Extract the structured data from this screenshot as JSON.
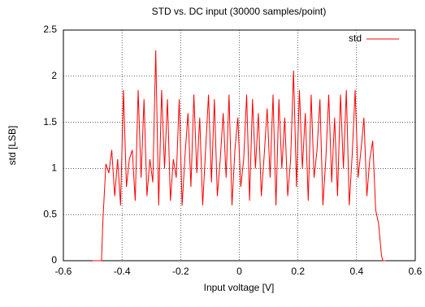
{
  "chart_data": {
    "type": "line",
    "title": "STD vs. DC input (30000 samples/point)",
    "x_label": "Input voltage [V]",
    "y_label": "std [LSB]",
    "x": [
      -0.5,
      -0.48,
      -0.47,
      -0.465,
      -0.455,
      -0.445,
      -0.435,
      -0.425,
      -0.415,
      -0.405,
      -0.395,
      -0.385,
      -0.375,
      -0.365,
      -0.355,
      -0.345,
      -0.335,
      -0.325,
      -0.315,
      -0.305,
      -0.295,
      -0.285,
      -0.275,
      -0.265,
      -0.255,
      -0.245,
      -0.235,
      -0.225,
      -0.215,
      -0.205,
      -0.195,
      -0.185,
      -0.175,
      -0.165,
      -0.155,
      -0.145,
      -0.135,
      -0.125,
      -0.115,
      -0.105,
      -0.095,
      -0.085,
      -0.075,
      -0.065,
      -0.055,
      -0.045,
      -0.035,
      -0.025,
      -0.015,
      -0.005,
      0.005,
      0.015,
      0.025,
      0.035,
      0.045,
      0.055,
      0.065,
      0.075,
      0.085,
      0.095,
      0.105,
      0.115,
      0.125,
      0.135,
      0.145,
      0.155,
      0.165,
      0.175,
      0.185,
      0.195,
      0.205,
      0.215,
      0.225,
      0.235,
      0.245,
      0.255,
      0.265,
      0.275,
      0.285,
      0.295,
      0.305,
      0.315,
      0.325,
      0.335,
      0.345,
      0.355,
      0.365,
      0.375,
      0.385,
      0.395,
      0.405,
      0.415,
      0.425,
      0.435,
      0.445,
      0.455,
      0.465,
      0.475,
      0.485,
      0.49,
      0.5
    ],
    "series": [
      {
        "name": "std",
        "color": "#ff0000",
        "values": [
          0,
          0,
          0,
          0.45,
          1.05,
          0.95,
          1.2,
          0.7,
          1.1,
          0.6,
          1.85,
          0.8,
          1.1,
          1.2,
          0.65,
          1.85,
          0.9,
          1.75,
          0.7,
          1.1,
          0.85,
          2.28,
          0.6,
          1.85,
          1.0,
          1.75,
          0.65,
          1.1,
          0.9,
          1.75,
          0.6,
          1.15,
          1.6,
          0.8,
          1.8,
          0.95,
          1.55,
          0.6,
          1.2,
          1.8,
          0.85,
          1.75,
          0.7,
          1.1,
          1.6,
          0.9,
          1.8,
          0.6,
          1.2,
          1.55,
          0.8,
          1.1,
          1.8,
          0.65,
          1.75,
          1.0,
          1.6,
          0.7,
          1.15,
          1.65,
          0.9,
          1.8,
          0.6,
          1.75,
          1.0,
          1.55,
          0.7,
          1.1,
          2.06,
          0.8,
          1.85,
          1.0,
          1.6,
          0.65,
          1.8,
          0.9,
          1.2,
          1.75,
          0.6,
          1.1,
          1.8,
          0.85,
          1.55,
          0.7,
          1.8,
          1.0,
          1.85,
          0.6,
          1.15,
          1.85,
          0.9,
          1.2,
          1.55,
          0.7,
          1.1,
          1.3,
          0.55,
          0.4,
          0.05,
          0,
          0
        ]
      }
    ],
    "xlim": [
      -0.6,
      0.6
    ],
    "xticks": [
      -0.6,
      -0.4,
      -0.2,
      0,
      0.2,
      0.4,
      0.6
    ],
    "ylim": [
      0,
      2.5
    ],
    "yticks": [
      0,
      0.5,
      1,
      1.5,
      2,
      2.5
    ],
    "grid": true,
    "legend": "top right"
  }
}
